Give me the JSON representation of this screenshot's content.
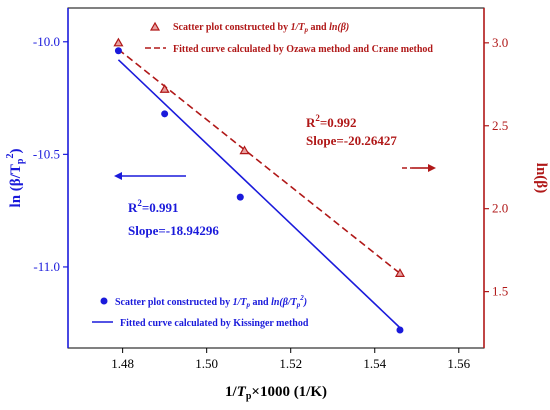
{
  "chart_data": {
    "type": "scatter",
    "x_axis": {
      "label_prefix": "1/",
      "label_var": "T",
      "label_sub": "p",
      "label_suffix": "×1000 (1/K)",
      "range": [
        1.467,
        1.566
      ],
      "ticks": [
        1.48,
        1.5,
        1.52,
        1.54,
        1.56
      ],
      "tick_labels": [
        "1.48",
        "1.50",
        "1.52",
        "1.54",
        "1.56"
      ]
    },
    "y_left": {
      "label": "ln (β/T",
      "label_sub": "p",
      "label_sup": "2",
      "label_end": ")",
      "color": "#1a1adb",
      "range": [
        -11.36,
        -9.85
      ],
      "ticks": [
        -11.0,
        -10.5,
        -10.0
      ],
      "tick_labels": [
        "-11.0",
        "-10.5",
        "-10.0"
      ]
    },
    "y_right": {
      "label": "ln(β)",
      "color": "#b01818",
      "range": [
        1.16,
        3.21
      ],
      "ticks": [
        1.5,
        2.0,
        2.5,
        3.0
      ],
      "tick_labels": [
        "1.5",
        "2.0",
        "2.5",
        "3.0"
      ]
    },
    "series": [
      {
        "axis": "left",
        "marker": "circle",
        "color": "#1a1adb",
        "points": [
          {
            "x": 1.479,
            "y": -10.04
          },
          {
            "x": 1.49,
            "y": -10.32
          },
          {
            "x": 1.508,
            "y": -10.69
          },
          {
            "x": 1.546,
            "y": -11.28
          }
        ],
        "fit": {
          "x": [
            1.479,
            1.546
          ],
          "y": [
            -10.08,
            -11.27
          ],
          "dash": false
        }
      },
      {
        "axis": "right",
        "marker": "triangle",
        "color": "#b01818",
        "points": [
          {
            "x": 1.479,
            "y": 3.0
          },
          {
            "x": 1.49,
            "y": 2.72
          },
          {
            "x": 1.509,
            "y": 2.35
          },
          {
            "x": 1.546,
            "y": 1.61
          }
        ],
        "fit": {
          "x": [
            1.479,
            1.546
          ],
          "y": [
            2.96,
            1.61
          ],
          "dash": true
        }
      }
    ],
    "legend_top": {
      "scatter_text": "Scatter plot constructed by ",
      "scatter_var": "1/T",
      "scatter_sub": "p",
      "scatter_and": " and ",
      "scatter_end": "ln(β)",
      "fit_text": "Fitted curve calculated by Ozawa method and Crane method"
    },
    "legend_bottom": {
      "scatter_text": "Scatter plot constructed by ",
      "scatter_var": "1/T",
      "scatter_sub": "p",
      "scatter_and": " and ",
      "scatter_end": "ln(β/T",
      "scatter_end_sub": "p",
      "scatter_end_sup": "2",
      "scatter_end_close": ")",
      "fit_text": "Fitted curve calculated by Kissinger method"
    },
    "annotations": {
      "red_r2_prefix": "R",
      "red_r2_sup": "2",
      "red_r2_value": "=0.992",
      "red_slope": "Slope=-20.26427",
      "blue_r2_prefix": "R",
      "blue_r2_sup": "2",
      "blue_r2_value": "=0.991",
      "blue_slope": "Slope=-18.94296"
    }
  }
}
